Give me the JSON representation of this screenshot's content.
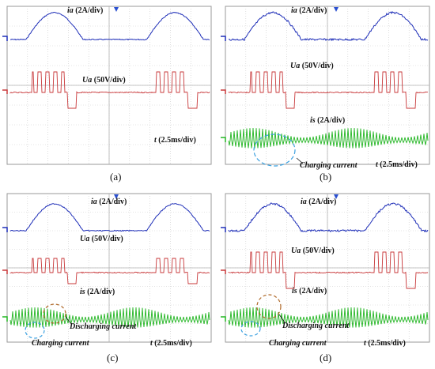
{
  "chart_data": [
    {
      "type": "line",
      "panel": "(a)",
      "time_scale": "t (2.5ms/div)",
      "series": [
        {
          "name": "ia (2A/div)",
          "color": "#1f2fb8",
          "waveform": "rectified_half_sine",
          "periods": 2
        },
        {
          "name": "Ua (50V/div)",
          "color": "#c8383a",
          "waveform": "pwm_pulses"
        }
      ],
      "annotations": []
    },
    {
      "type": "line",
      "panel": "(b)",
      "time_scale": "t (2.5ms/div)",
      "series": [
        {
          "name": "ia (2A/div)",
          "color": "#1f2fb8",
          "waveform": "rectified_half_sine",
          "periods": 2
        },
        {
          "name": "Ua (50V/div)",
          "color": "#c8383a",
          "waveform": "pwm_pulses"
        },
        {
          "name": "is (2A/div)",
          "color": "#22b522",
          "waveform": "switching_current"
        }
      ],
      "annotations": [
        "Charging current"
      ]
    },
    {
      "type": "line",
      "panel": "(c)",
      "time_scale": "t (2.5ms/div)",
      "series": [
        {
          "name": "ia (2A/div)",
          "color": "#1f2fb8",
          "waveform": "rectified_half_sine",
          "periods": 2
        },
        {
          "name": "Ua (50V/div)",
          "color": "#c8383a",
          "waveform": "pwm_pulses"
        },
        {
          "name": "is (2A/div)",
          "color": "#22b522",
          "waveform": "switching_current"
        }
      ],
      "annotations": [
        "Discharging current",
        "Charging current"
      ]
    },
    {
      "type": "line",
      "panel": "(d)",
      "time_scale": "t (2.5ms/div)",
      "series": [
        {
          "name": "ia (2A/div)",
          "color": "#1f2fb8",
          "waveform": "rectified_half_sine",
          "periods": 2
        },
        {
          "name": "Ua (50V/div)",
          "color": "#c8383a",
          "waveform": "pwm_pulses"
        },
        {
          "name": "is (2A/div)",
          "color": "#22b522",
          "waveform": "switching_current"
        }
      ],
      "annotations": [
        "Discharging current",
        "Charging current"
      ]
    }
  ],
  "labels": {
    "a": {
      "ia": "ia",
      "ia_scale": " (2A/div)",
      "ua": "Ua",
      "ua_scale": " (50V/div)",
      "t": "t",
      "t_scale": " (2.5ms/div)",
      "caption": "(a)"
    },
    "b": {
      "ia": "ia",
      "ia_scale": " (2A/div)",
      "ua": "Ua",
      "ua_scale": " (50V/div)",
      "is": "is",
      "is_scale": " (2A/div)",
      "charging": "Charging current",
      "t": "t",
      "t_scale": " (2.5ms/div)",
      "caption": "(b)"
    },
    "c": {
      "ia": "ia",
      "ia_scale": " (2A/div)",
      "ua": "Ua",
      "ua_scale": " (50V/div)",
      "is": "is",
      "is_scale": " (2A/div)",
      "discharging": "Discharging current",
      "charging": "Charging current",
      "t": "t",
      "t_scale": " (2.5ms/div)",
      "caption": "(c)"
    },
    "d": {
      "ia": "ia",
      "ia_scale": " (2A/div)",
      "ua": "Ua",
      "ua_scale": " (50V/div)",
      "is": "is",
      "is_scale": " (2A/div)",
      "discharging": "Discharging current",
      "charging": "Charging current",
      "t": "t",
      "t_scale": " (2.5ms/div)",
      "caption": "(d)"
    }
  },
  "colors": {
    "ia": "#1f2fb8",
    "ua": "#c8383a",
    "is": "#22b522",
    "grid": "#c9c9c9",
    "frame": "#9a9a9a",
    "marker": "#2a4fd0",
    "circle_charging": "#3aa0e0",
    "circle_discharging": "#b06a2a"
  }
}
